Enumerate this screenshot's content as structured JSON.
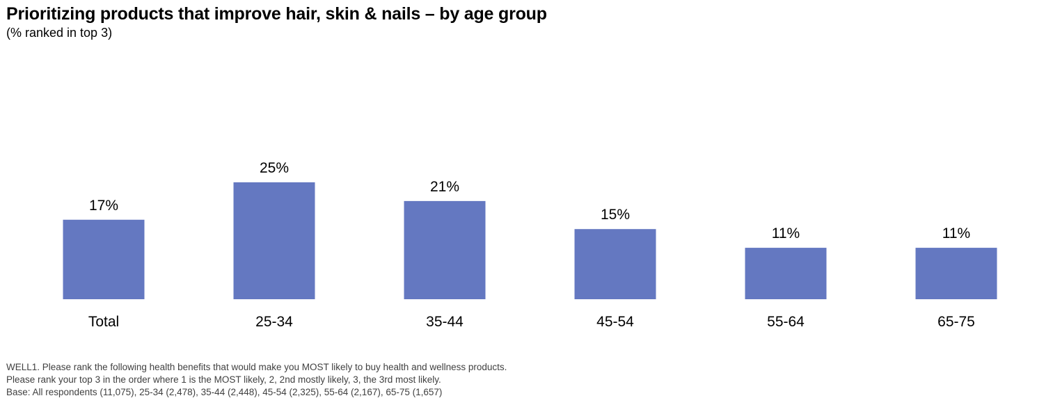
{
  "header": {
    "title": "Prioritizing products that improve hair, skin & nails – by age group",
    "subtitle": "(% ranked in top 3)"
  },
  "footnotes": {
    "question_line1": "WELL1. Please rank the following health benefits that would make you MOST likely to buy health and wellness products.",
    "question_line2": "Please rank your top 3 in the order where 1 is the MOST likely, 2, 2nd mostly likely, 3, the 3rd most likely.",
    "base": "Base: All respondents (11,075), 25-34 (2,478), 35-44 (2,448), 45-54 (2,325), 55-64 (2,167), 65-75 (1,657)"
  },
  "colors": {
    "bar": "#6478c1",
    "text": "#000000",
    "footnote": "#404040"
  },
  "chart_data": {
    "type": "bar",
    "title": "Prioritizing products that improve hair, skin & nails – by age group",
    "subtitle": "(% ranked in top 3)",
    "categories": [
      "Total",
      "25-34",
      "35-44",
      "45-54",
      "55-64",
      "65-75"
    ],
    "values": [
      17,
      25,
      21,
      15,
      11,
      11
    ],
    "data_labels": [
      "17%",
      "25%",
      "21%",
      "15%",
      "11%",
      "11%"
    ],
    "unit": "%",
    "ylim": [
      0,
      25
    ],
    "grid": false,
    "legend": "none"
  }
}
